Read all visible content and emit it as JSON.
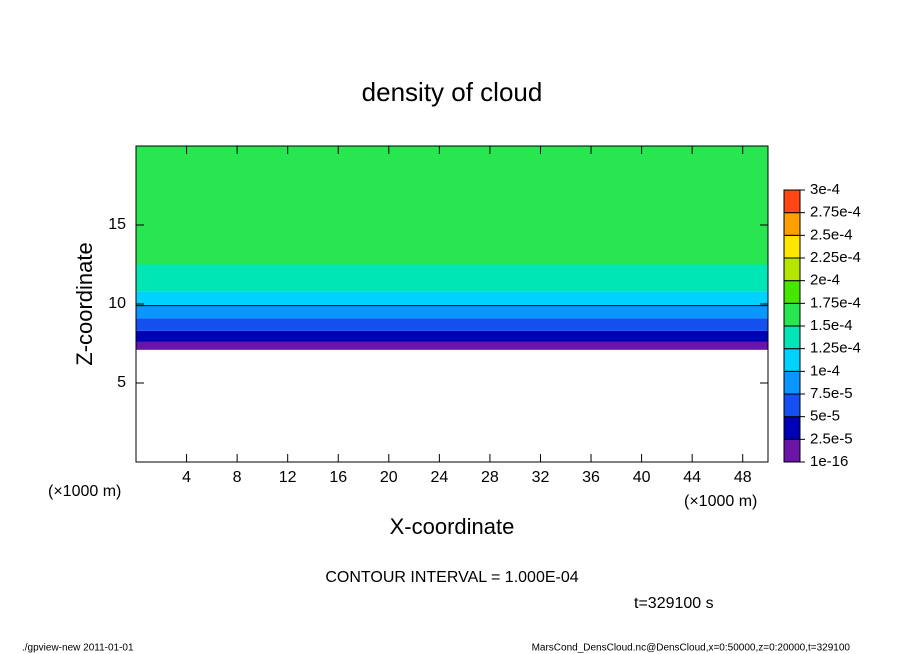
{
  "chart_data": {
    "type": "contour",
    "title": "density of cloud",
    "x_label": "X-coordinate",
    "y_label": "Z-coordinate",
    "x_unit": "(×1000 m)",
    "xlim": [
      0,
      50
    ],
    "xticks": [
      4,
      8,
      12,
      16,
      20,
      24,
      28,
      32,
      36,
      40,
      44,
      48
    ],
    "ylim": [
      0,
      20
    ],
    "yticks": [
      5,
      10,
      15
    ],
    "colorbar": {
      "levels": [
        {
          "value": 1e-16,
          "label": "1e-16"
        },
        {
          "value": 2.5e-05,
          "label": "2.5e-5"
        },
        {
          "value": 5e-05,
          "label": "5e-5"
        },
        {
          "value": 7.5e-05,
          "label": "7.5e-5"
        },
        {
          "value": 0.0001,
          "label": "1e-4"
        },
        {
          "value": 0.000125,
          "label": "1.25e-4"
        },
        {
          "value": 0.00015,
          "label": "1.5e-4"
        },
        {
          "value": 0.000175,
          "label": "1.75e-4"
        },
        {
          "value": 0.0002,
          "label": "2e-4"
        },
        {
          "value": 0.000225,
          "label": "2.25e-4"
        },
        {
          "value": 0.00025,
          "label": "2.5e-4"
        },
        {
          "value": 0.000275,
          "label": "2.75e-4"
        },
        {
          "value": 0.0003,
          "label": "3e-4"
        }
      ],
      "colors": [
        "#6a14a8",
        "#0000b4",
        "#1450f0",
        "#0a96ff",
        "#00d2ff",
        "#00e6b4",
        "#28e650",
        "#46e600",
        "#b4e600",
        "#ffe600",
        "#ffa000",
        "#ff4614",
        "#ff8c8c"
      ]
    },
    "level_heights": [
      7.1,
      7.6,
      8.3,
      9.1,
      9.9,
      10.8,
      12.5,
      null,
      null,
      null,
      null,
      null,
      null
    ],
    "contour_line_level": 4,
    "contour_interval": "CONTOUR INTERVAL = 1.000E-04",
    "time": "t=329100 s",
    "footer_left": "./gpview-new   2011-01-01",
    "footer_right": "MarsCond_DensCloud.nc@DensCloud,x=0:50000,z=0:20000,t=329100"
  }
}
